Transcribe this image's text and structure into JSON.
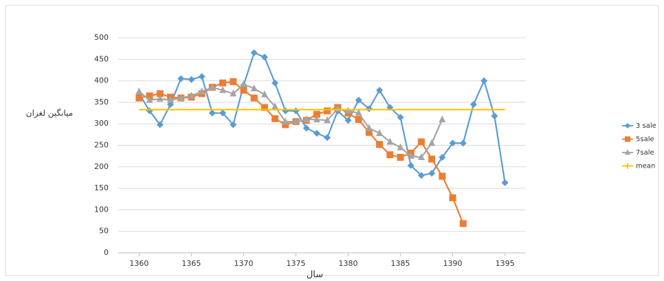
{
  "chart_data": {
    "type": "line",
    "y_label": "میانگین لغزان",
    "x_label": "سال",
    "xlim": [
      1358,
      1397
    ],
    "xticks": [
      1360,
      1365,
      1370,
      1375,
      1380,
      1385,
      1390,
      1395
    ],
    "ylim": [
      0,
      500
    ],
    "yticks": [
      0,
      50,
      100,
      150,
      200,
      250,
      300,
      350,
      400,
      450,
      500
    ],
    "grid": true,
    "legend": "right",
    "series": [
      {
        "name": "3 sale",
        "color": "#5b9bd5",
        "marker": "diamond",
        "x": [
          1360,
          1361,
          1362,
          1363,
          1364,
          1365,
          1366,
          1367,
          1368,
          1369,
          1370,
          1371,
          1372,
          1373,
          1374,
          1375,
          1376,
          1377,
          1378,
          1379,
          1380,
          1381,
          1382,
          1383,
          1384,
          1385,
          1386,
          1387,
          1388,
          1389,
          1390,
          1391,
          1392,
          1393,
          1394,
          1395
        ],
        "values": [
          370,
          330,
          298,
          345,
          405,
          403,
          410,
          325,
          325,
          298,
          390,
          465,
          455,
          395,
          330,
          330,
          290,
          278,
          268,
          330,
          308,
          355,
          335,
          378,
          338,
          315,
          203,
          180,
          185,
          222,
          255,
          255,
          345,
          400,
          318,
          163
        ]
      },
      {
        "name": "5sale",
        "color": "#ed7d31",
        "marker": "square",
        "x": [
          1360,
          1361,
          1362,
          1363,
          1364,
          1365,
          1366,
          1367,
          1368,
          1369,
          1370,
          1371,
          1372,
          1373,
          1374,
          1375,
          1376,
          1377,
          1378,
          1379,
          1380,
          1381,
          1382,
          1383,
          1384,
          1385,
          1386,
          1387,
          1388,
          1389,
          1390,
          1391
        ],
        "values": [
          360,
          365,
          370,
          362,
          360,
          362,
          370,
          385,
          395,
          398,
          378,
          360,
          338,
          312,
          298,
          305,
          308,
          322,
          330,
          338,
          325,
          310,
          280,
          252,
          228,
          222,
          232,
          258,
          218,
          178,
          128,
          68
        ]
      },
      {
        "name": "7sale",
        "color": "#a5a5a5",
        "marker": "triangle",
        "x": [
          1360,
          1361,
          1362,
          1363,
          1364,
          1365,
          1366,
          1367,
          1368,
          1369,
          1370,
          1371,
          1372,
          1373,
          1374,
          1375,
          1376,
          1377,
          1378,
          1379,
          1380,
          1381,
          1382,
          1383,
          1384,
          1385,
          1386,
          1387,
          1388,
          1389
        ],
        "values": [
          375,
          355,
          358,
          355,
          360,
          365,
          375,
          385,
          378,
          370,
          392,
          382,
          368,
          340,
          305,
          305,
          310,
          310,
          308,
          335,
          330,
          325,
          290,
          278,
          258,
          245,
          225,
          222,
          255,
          310
        ]
      },
      {
        "name": "mean",
        "color": "#ffc000",
        "marker": "none",
        "x": [
          1360,
          1395
        ],
        "values": [
          333,
          333
        ]
      }
    ]
  }
}
